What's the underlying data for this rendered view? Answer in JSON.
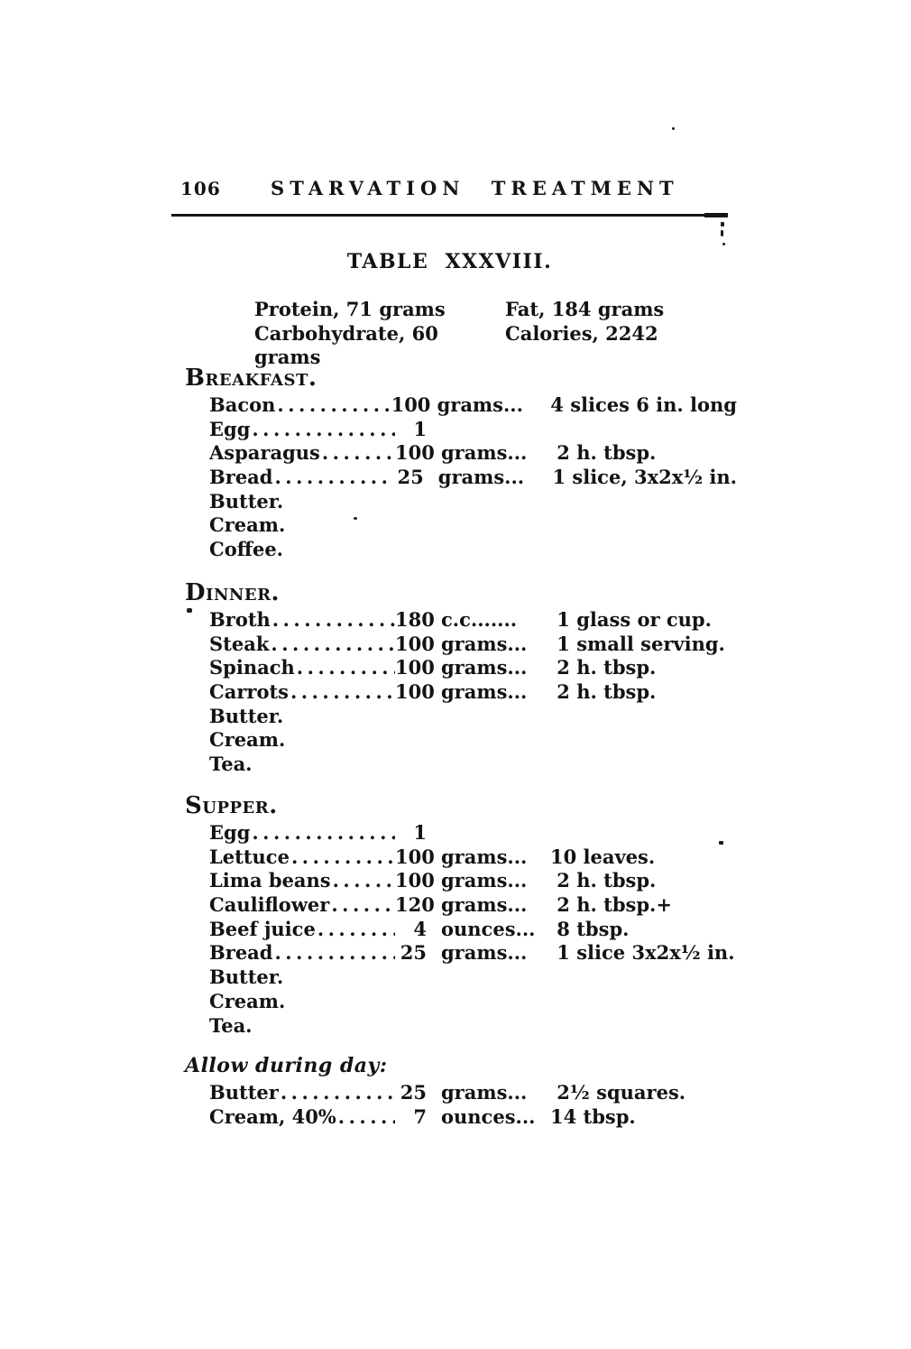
{
  "page": {
    "paper_color": "#ffffff",
    "ink_color": "#131313",
    "number": "106",
    "running_title": "STARVATION TREATMENT",
    "table_title": "TABLE XXXVIII.",
    "summary": {
      "rows": [
        {
          "left": "Protein, 71 grams",
          "right": "Fat, 184 grams"
        },
        {
          "left": "Carbohydrate, 60 grams",
          "right": "Calories, 2242"
        }
      ]
    },
    "sections": [
      {
        "heading": "Breakfast.",
        "items": [
          {
            "name": "Bacon",
            "qty": "100",
            "unit": "grams...",
            "desc": " 4 slices 6 in. long"
          },
          {
            "name": "Egg",
            "qty": "1",
            "unit": "",
            "desc": ""
          },
          {
            "name": "Asparagus",
            "qty": "100",
            "unit": "grams...",
            "desc": " 2 h. tbsp."
          },
          {
            "name": "Bread",
            "qty": "25",
            "unit": "grams...",
            "desc": " 1 slice, 3x2x½ in."
          },
          {
            "name": "Butter."
          },
          {
            "name": "Cream."
          },
          {
            "name": "Coffee."
          }
        ]
      },
      {
        "heading": "Dinner.",
        "items": [
          {
            "name": "Broth",
            "qty": "180",
            "unit": "c.c.......",
            "desc": " 1 glass or cup."
          },
          {
            "name": "Steak",
            "qty": "100",
            "unit": "grams...",
            "desc": " 1 small serving."
          },
          {
            "name": "Spinach",
            "qty": "100",
            "unit": "grams...",
            "desc": " 2 h. tbsp."
          },
          {
            "name": "Carrots",
            "qty": "100",
            "unit": "grams...",
            "desc": " 2 h. tbsp."
          },
          {
            "name": "Butter."
          },
          {
            "name": "Cream."
          },
          {
            "name": "Tea."
          }
        ]
      },
      {
        "heading": "Supper.",
        "items": [
          {
            "name": "Egg",
            "qty": "1",
            "unit": "",
            "desc": ""
          },
          {
            "name": "Lettuce",
            "qty": "100",
            "unit": "grams...",
            "desc": "10 leaves."
          },
          {
            "name": "Lima beans",
            "qty": "100",
            "unit": "grams...",
            "desc": " 2 h. tbsp."
          },
          {
            "name": "Cauliflower",
            "qty": "120",
            "unit": "grams...",
            "desc": " 2 h. tbsp.+"
          },
          {
            "name": "Beef juice",
            "qty": "4",
            "unit": "ounces...",
            "desc": " 8 tbsp."
          },
          {
            "name": "Bread",
            "qty": "25",
            "unit": "grams...",
            "desc": " 1 slice 3x2x½ in."
          },
          {
            "name": "Butter."
          },
          {
            "name": "Cream."
          },
          {
            "name": "Tea."
          }
        ]
      },
      {
        "heading": "Allow during day:",
        "items": [
          {
            "name": "Butter",
            "qty": "25",
            "unit": "grams...",
            "desc": " 2½ squares."
          },
          {
            "name": "Cream, 40%",
            "qty": "7",
            "unit": "ounces...",
            "desc": "14 tbsp."
          }
        ]
      }
    ]
  }
}
